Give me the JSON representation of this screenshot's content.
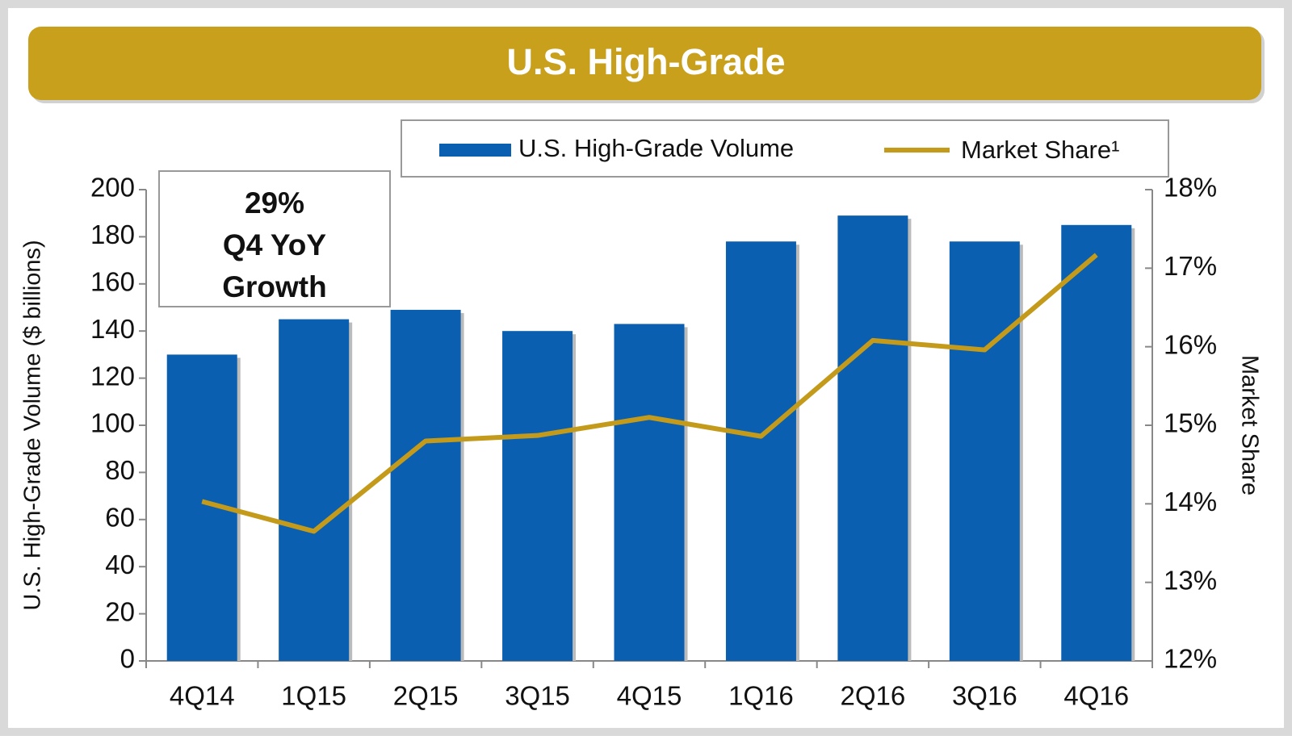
{
  "chart_data": {
    "type": "bar",
    "title": "U.S. High-Grade",
    "annotation": [
      "29%",
      "Q4 YoY",
      "Growth"
    ],
    "y_label": "U.S. High-Grade Volume ($ billions)",
    "y2_label": "Market Share",
    "categories": [
      "4Q14",
      "1Q15",
      "2Q15",
      "3Q15",
      "4Q15",
      "1Q16",
      "2Q16",
      "3Q16",
      "4Q16"
    ],
    "series": [
      {
        "name": "U.S. High-Grade Volume",
        "type": "bar",
        "color": "#0b5fb0",
        "values": [
          130,
          145,
          149,
          140,
          143,
          178,
          189,
          178,
          185
        ]
      },
      {
        "name": "Market Share¹",
        "type": "line",
        "axis": "y2",
        "color": "#c49a1b",
        "values": [
          14.03,
          13.65,
          14.8,
          14.87,
          15.1,
          14.86,
          16.08,
          15.96,
          17.17
        ]
      }
    ],
    "ylim": [
      0,
      200
    ],
    "yticks": [
      0,
      20,
      40,
      60,
      80,
      100,
      120,
      140,
      160,
      180,
      200
    ],
    "y2lim": [
      12,
      18
    ],
    "y2ticks": [
      {
        "value": 12,
        "label": "12%"
      },
      {
        "value": 13,
        "label": "13%"
      },
      {
        "value": 14,
        "label": "14%"
      },
      {
        "value": 15,
        "label": "15%"
      },
      {
        "value": 16,
        "label": "16%"
      },
      {
        "value": 17,
        "label": "17%"
      },
      {
        "value": 18,
        "label": "18%"
      }
    ]
  }
}
